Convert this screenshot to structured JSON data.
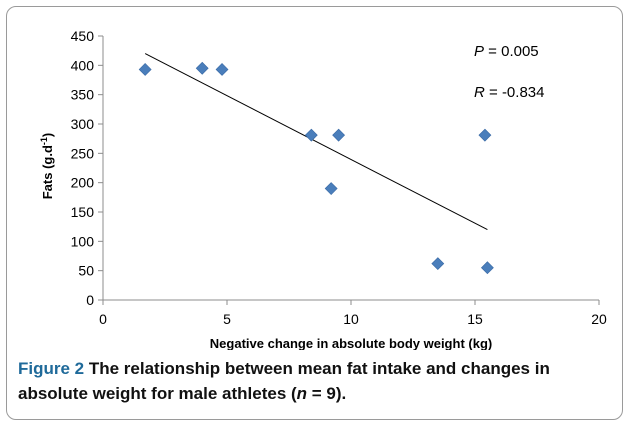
{
  "chart_data": {
    "type": "scatter",
    "xlabel": "Negative change in absolute body weight (kg)",
    "ylabel_main": "Fats (g.d",
    "ylabel_sup": "-1",
    "ylabel_close": ")",
    "xlim": [
      0,
      20
    ],
    "ylim": [
      0,
      450
    ],
    "xticks": [
      0,
      5,
      10,
      15,
      20
    ],
    "yticks": [
      0,
      50,
      100,
      150,
      200,
      250,
      300,
      350,
      400,
      450
    ],
    "points": [
      {
        "x": 1.7,
        "y": 393
      },
      {
        "x": 4.0,
        "y": 395
      },
      {
        "x": 4.8,
        "y": 393
      },
      {
        "x": 8.4,
        "y": 281
      },
      {
        "x": 9.5,
        "y": 281
      },
      {
        "x": 9.2,
        "y": 190
      },
      {
        "x": 13.5,
        "y": 62
      },
      {
        "x": 15.4,
        "y": 281
      },
      {
        "x": 15.5,
        "y": 55
      }
    ],
    "trendline": {
      "x": [
        1.7,
        15.5
      ],
      "y": [
        420,
        120
      ]
    },
    "marker_color": "#4a7ebb",
    "grid": false,
    "annotations": {
      "p_symbol": "P",
      "p_value": " = 0.005",
      "r_symbol": "R",
      "r_value": " = -0.834"
    }
  },
  "caption": {
    "lead": "Figure 2",
    "text_before_n": " The relationship between mean fat intake and changes in absolute weight for male athletes (",
    "n_symbol": "n",
    "text_after_n": " = 9)."
  }
}
